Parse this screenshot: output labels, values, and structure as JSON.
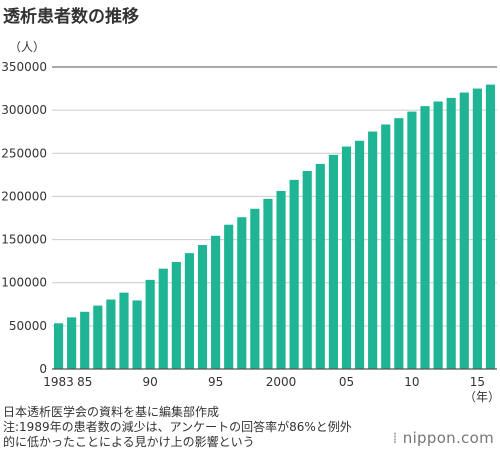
{
  "title": "透析患者数の推移",
  "notes": [
    "日本透析医学会の資料を基に編集部作成",
    "注:1989年の患者数の減少は、アンケートの回答率が86%と例外",
    "的に低かったことによる見かけ上の影響という"
  ],
  "logo": "nippon.com",
  "colors": {
    "bar": "#1fb594",
    "grid": "#cccccc",
    "baseline": "#555555",
    "text": "#333333"
  },
  "chart_data": {
    "type": "bar",
    "title": "透析患者数の推移",
    "ylabel": "（人）",
    "xlabel": "（年）",
    "ylim": [
      0,
      350000
    ],
    "yticks": [
      0,
      50000,
      100000,
      150000,
      200000,
      250000,
      300000,
      350000
    ],
    "xtick_labels": [
      {
        "year": 1983,
        "label": "1983"
      },
      {
        "year": 1985,
        "label": "85"
      },
      {
        "year": 1990,
        "label": "90"
      },
      {
        "year": 1995,
        "label": "95"
      },
      {
        "year": 2000,
        "label": "2000"
      },
      {
        "year": 2005,
        "label": "05"
      },
      {
        "year": 2010,
        "label": "10"
      },
      {
        "year": 2015,
        "label": "15"
      }
    ],
    "grid": true,
    "categories": [
      1983,
      1984,
      1985,
      1986,
      1987,
      1988,
      1989,
      1990,
      1991,
      1992,
      1993,
      1994,
      1995,
      1996,
      1997,
      1998,
      1999,
      2000,
      2001,
      2002,
      2003,
      2004,
      2005,
      2006,
      2007,
      2008,
      2009,
      2010,
      2011,
      2012,
      2013,
      2014,
      2015,
      2016
    ],
    "values": [
      53000,
      59800,
      66300,
      73500,
      80500,
      88500,
      79500,
      103300,
      116300,
      124000,
      134300,
      143700,
      154400,
      167200,
      175900,
      185700,
      197200,
      206300,
      219200,
      229500,
      237700,
      248200,
      257800,
      264500,
      275200,
      283400,
      290700,
      298300,
      304600,
      310000,
      314200,
      320400,
      325000,
      329600
    ]
  }
}
